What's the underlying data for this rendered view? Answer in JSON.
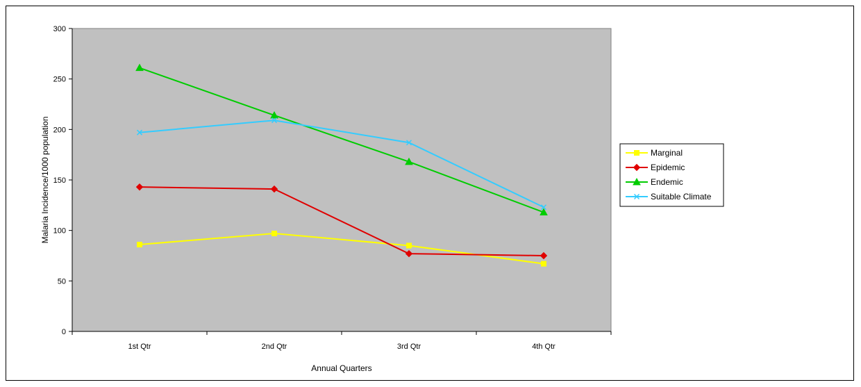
{
  "chart_data": {
    "type": "line",
    "title": "",
    "xlabel": "Annual Quarters",
    "ylabel": "Malaria Incidence/1000 population",
    "categories": [
      "1st Qtr",
      "2nd Qtr",
      "3rd Qtr",
      "4th Qtr"
    ],
    "ylim": [
      0,
      300
    ],
    "yticks": [
      0,
      50,
      100,
      150,
      200,
      250,
      300
    ],
    "grid": false,
    "legend_position": "right",
    "plot_background": "#c0c0c0",
    "series": [
      {
        "name": "Marginal",
        "color": "#ffff00",
        "marker": "square",
        "values": [
          86,
          97,
          85,
          67
        ]
      },
      {
        "name": "Epidemic",
        "color": "#e00000",
        "marker": "diamond",
        "values": [
          143,
          141,
          77,
          75
        ]
      },
      {
        "name": "Endemic",
        "color": "#00cc00",
        "marker": "triangle",
        "values": [
          261,
          214,
          168,
          118
        ]
      },
      {
        "name": "Suitable Climate",
        "color": "#33ccff",
        "marker": "x",
        "values": [
          197,
          209,
          187,
          123
        ]
      }
    ]
  }
}
